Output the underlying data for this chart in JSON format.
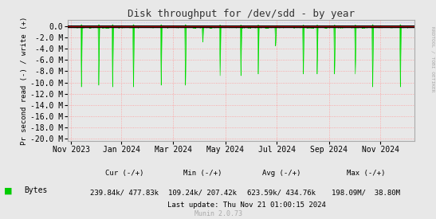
{
  "title": "Disk throughput for /dev/sdd - by year",
  "ylabel": "Pr second read (-) / write (+)",
  "bg_color": "#e8e8e8",
  "plot_bg_color": "#e8e8e8",
  "grid_color_h": "#ff9999",
  "grid_color_v": "#ff9999",
  "yticks": [
    0.0,
    -2.0,
    -4.0,
    -6.0,
    -8.0,
    -10.0,
    -12.0,
    -14.0,
    -16.0,
    -18.0,
    -20.0
  ],
  "ytick_labels": [
    "0.0",
    "-2.0 M",
    "-4.0 M",
    "-6.0 M",
    "-8.0 M",
    "-10.0 M",
    "-12.0 M",
    "-14.0 M",
    "-16.0 M",
    "-18.0 M",
    "-20.0 M"
  ],
  "ylim": [
    -20.5,
    1.2
  ],
  "xtick_labels": [
    "Nov 2023",
    "Jan 2024",
    "Mar 2024",
    "May 2024",
    "Jul 2024",
    "Sep 2024",
    "Nov 2024"
  ],
  "xtick_norm": [
    0.01,
    0.155,
    0.305,
    0.455,
    0.604,
    0.754,
    0.903
  ],
  "green_color": "#00dd00",
  "black_color": "#000000",
  "red_color": "#dd0000",
  "blue_ref_color": "#aaaaff",
  "legend_label": "Bytes",
  "legend_color": "#00cc00",
  "cur_label": "Cur (-/+)",
  "cur_val": "239.84k/ 477.83k",
  "min_label": "Min (-/+)",
  "min_val": "109.24k/ 207.42k",
  "avg_label": "Avg (-/+)",
  "avg_val": "623.59k/ 434.76k",
  "max_label": "Max (-/+)",
  "max_val": "198.09M/  38.80M",
  "last_update": "Last update: Thu Nov 21 01:00:15 2024",
  "munin_label": "Munin 2.0.73",
  "rrdtool_label": "RRDTOOL / TOBI OETIKER",
  "spike_positions": [
    0.04,
    0.09,
    0.13,
    0.19,
    0.27,
    0.34,
    0.39,
    0.44,
    0.5,
    0.55,
    0.6,
    0.68,
    0.72,
    0.77,
    0.83,
    0.88,
    0.96
  ],
  "spike_depths": [
    -10.8,
    -10.5,
    -10.8,
    -10.8,
    -10.5,
    -10.5,
    -2.8,
    -8.8,
    -8.8,
    -8.5,
    -3.5,
    -8.5,
    -8.5,
    -8.5,
    -8.5,
    -10.8,
    -10.8
  ],
  "n_points": 8760
}
